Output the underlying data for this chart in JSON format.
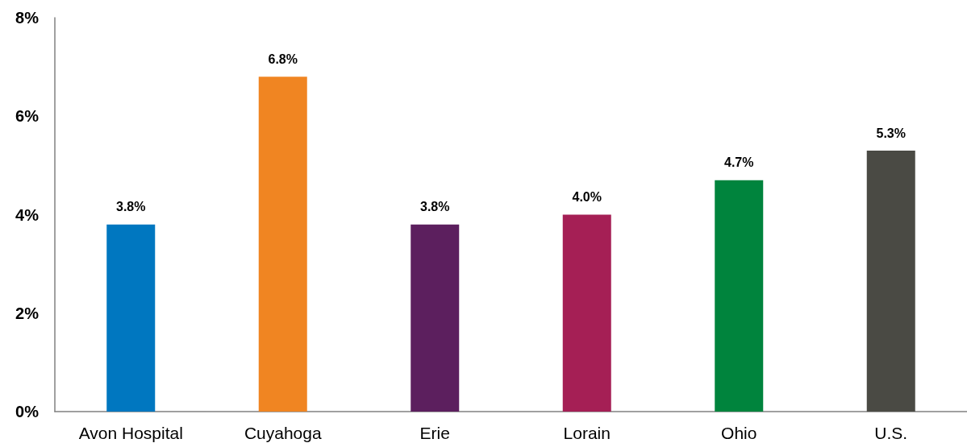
{
  "chart_data": {
    "type": "bar",
    "categories": [
      "Avon Hospital",
      "Cuyahoga",
      "Erie",
      "Lorain",
      "Ohio",
      "U.S."
    ],
    "values": [
      3.8,
      6.8,
      3.8,
      4.0,
      4.7,
      5.3
    ],
    "colors": [
      "#0077c0",
      "#f08522",
      "#5c1f5e",
      "#a51f55",
      "#00843d",
      "#4a4a44"
    ],
    "value_labels": [
      "3.8%",
      "6.8%",
      "3.8%",
      "4.0%",
      "4.7%",
      "5.3%"
    ],
    "ylim": [
      0,
      8
    ],
    "yticks": [
      {
        "value": 0,
        "label": "0%"
      },
      {
        "value": 2,
        "label": "2%"
      },
      {
        "value": 4,
        "label": "4%"
      },
      {
        "value": 6,
        "label": "6%"
      },
      {
        "value": 8,
        "label": "8%"
      }
    ],
    "grid": false
  }
}
